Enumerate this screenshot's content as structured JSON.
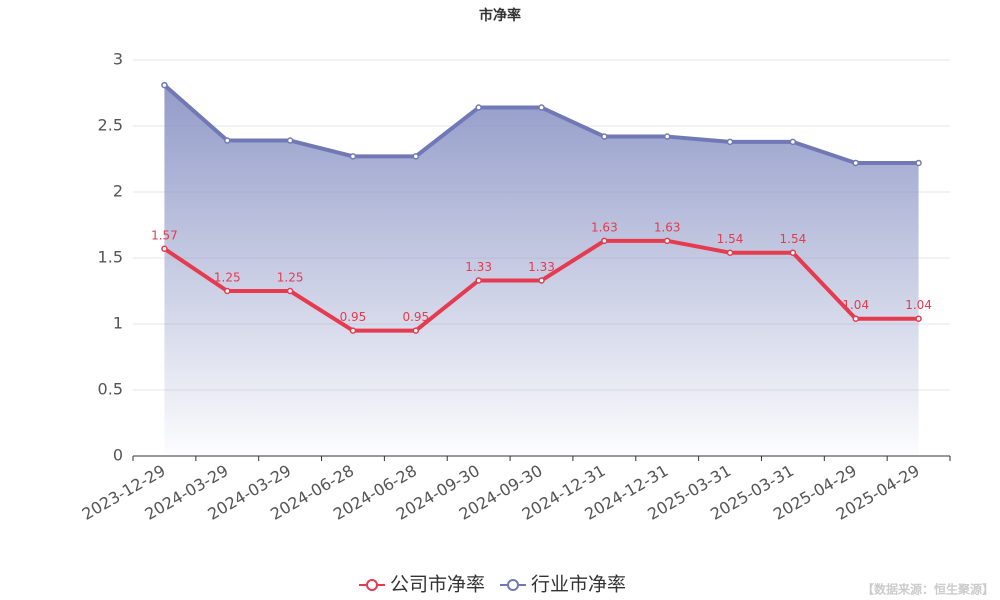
{
  "chart_data": {
    "type": "line",
    "title": "市净率",
    "categories": [
      "2023-12-29",
      "2024-03-29",
      "2024-03-29",
      "2024-06-28",
      "2024-06-28",
      "2024-09-30",
      "2024-09-30",
      "2024-12-31",
      "2024-12-31",
      "2025-03-31",
      "2025-03-31",
      "2025-04-29",
      "2025-04-29"
    ],
    "series": [
      {
        "name": "公司市净率",
        "color": "#e63a4f",
        "area": false,
        "data_labels": true,
        "values": [
          1.57,
          1.25,
          1.25,
          0.95,
          0.95,
          1.33,
          1.33,
          1.63,
          1.63,
          1.54,
          1.54,
          1.04,
          1.04
        ]
      },
      {
        "name": "行业市净率",
        "color": "#7079b6",
        "area": true,
        "data_labels": false,
        "values": [
          2.81,
          2.39,
          2.39,
          2.27,
          2.27,
          2.64,
          2.64,
          2.42,
          2.42,
          2.38,
          2.38,
          2.22,
          2.22
        ]
      }
    ],
    "ylim": [
      0,
      3
    ],
    "yticks": [
      0,
      0.5,
      1,
      1.5,
      2,
      2.5,
      3
    ],
    "grid": true,
    "legend": "bottom",
    "source": "【数据来源：恒生聚源】"
  }
}
